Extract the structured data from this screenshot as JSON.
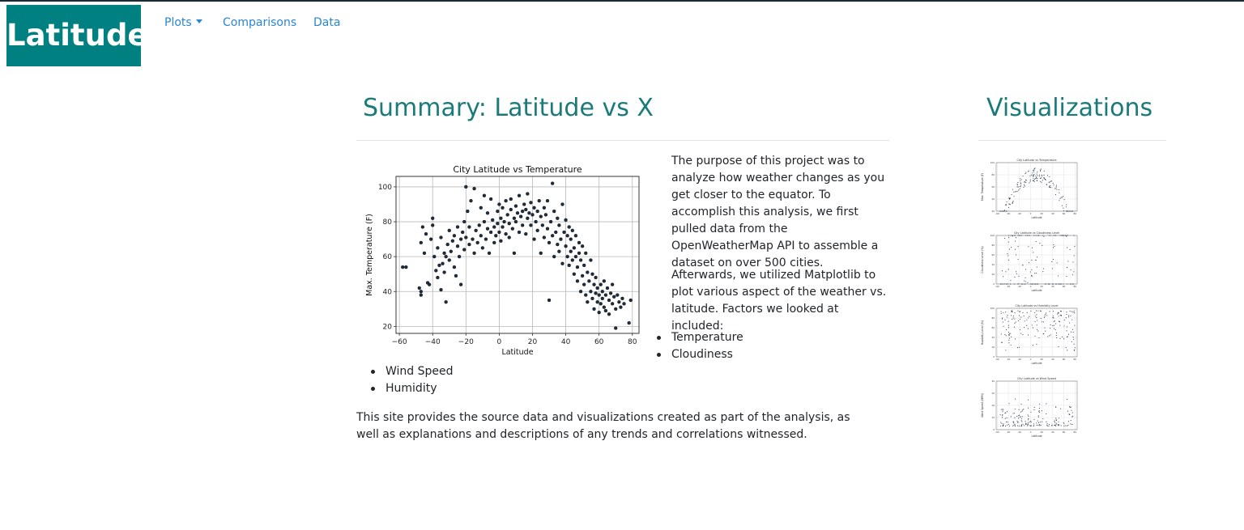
{
  "brand": "Latitude",
  "nav": {
    "plots_label": "Plots",
    "comparisons_label": "Comparisons",
    "data_label": "Data"
  },
  "summary": {
    "title": "Summary: Latitude vs X",
    "paragraph1": "The purpose of this project was to analyze how weather changes as you get closer to the equator. To accomplish this analysis, we first pulled data from the OpenWeatherMap API to assemble a dataset on over 500 cities.",
    "paragraph2": "Afterwards, we utilized Matplotlib to plot various aspect of the weather vs. latitude. Factors we looked at included:",
    "factors_right": [
      "Temperature",
      "Cloudiness"
    ],
    "factors_left": [
      "Wind Speed",
      "Humidity"
    ],
    "paragraph3": "This site provides the source data and visualizations created as part of the analysis, as well as explanations and descriptions of any trends and correlations witnessed."
  },
  "visualizations": {
    "title": "Visualizations",
    "thumbnails": [
      {
        "title": "City Latitude vs Temperature",
        "ylabel": "Max. Temperature (F)",
        "xlabel": "Latitude",
        "yticks": [
          20,
          40,
          60,
          80,
          100
        ]
      },
      {
        "title": "City Latitude vs Cloudiness Level",
        "ylabel": "Cloudiness Level (%)",
        "xlabel": "Latitude",
        "yticks": [
          0,
          20,
          40,
          60,
          80,
          100
        ]
      },
      {
        "title": "City Latitude vs Humidity Level",
        "ylabel": "Humidity Level (%)",
        "xlabel": "Latitude",
        "yticks": [
          0,
          20,
          40,
          60,
          80,
          100
        ]
      },
      {
        "title": "City Latitude vs Wind Speed",
        "ylabel": "Wind Speed (MPH)",
        "xlabel": "Latitude",
        "yticks": [
          0,
          10,
          20,
          30,
          40
        ]
      }
    ]
  },
  "chart_data": {
    "type": "scatter",
    "title": "City Latitude vs Temperature",
    "xlabel": "Latitude",
    "ylabel": "Max. Temperature (F)",
    "xlim": [
      -62,
      84
    ],
    "ylim": [
      16,
      106
    ],
    "xticks": [
      -60,
      -40,
      -20,
      0,
      20,
      40,
      60,
      80
    ],
    "yticks": [
      20,
      40,
      60,
      80,
      100
    ],
    "grid": true,
    "marker_color": "#1f2d3d",
    "points": [
      [
        -58,
        54
      ],
      [
        -56,
        54
      ],
      [
        -48,
        42
      ],
      [
        -47,
        40
      ],
      [
        -47,
        38
      ],
      [
        -47,
        68
      ],
      [
        -46,
        77
      ],
      [
        -45,
        62
      ],
      [
        -44,
        73
      ],
      [
        -43,
        45
      ],
      [
        -42,
        44
      ],
      [
        -41,
        70
      ],
      [
        -40,
        78
      ],
      [
        -40,
        82
      ],
      [
        -39,
        60
      ],
      [
        -38,
        52
      ],
      [
        -37,
        65
      ],
      [
        -37,
        48
      ],
      [
        -36,
        55
      ],
      [
        -35,
        41
      ],
      [
        -35,
        71
      ],
      [
        -34,
        56
      ],
      [
        -33,
        62
      ],
      [
        -33,
        51
      ],
      [
        -32,
        34
      ],
      [
        -32,
        60
      ],
      [
        -31,
        67
      ],
      [
        -30,
        58
      ],
      [
        -30,
        75
      ],
      [
        -29,
        63
      ],
      [
        -28,
        69
      ],
      [
        -27,
        54
      ],
      [
        -27,
        72
      ],
      [
        -26,
        49
      ],
      [
        -25,
        66
      ],
      [
        -25,
        77
      ],
      [
        -24,
        60
      ],
      [
        -23,
        44
      ],
      [
        -23,
        70
      ],
      [
        -22,
        74
      ],
      [
        -21,
        80
      ],
      [
        -21,
        64
      ],
      [
        -20,
        71
      ],
      [
        -20,
        100
      ],
      [
        -19,
        86
      ],
      [
        -18,
        67
      ],
      [
        -18,
        77
      ],
      [
        -17,
        92
      ],
      [
        -16,
        70
      ],
      [
        -15,
        62
      ],
      [
        -15,
        99
      ],
      [
        -14,
        75
      ],
      [
        -13,
        68
      ],
      [
        -12,
        78
      ],
      [
        -11,
        88
      ],
      [
        -11,
        72
      ],
      [
        -10,
        65
      ],
      [
        -9,
        80
      ],
      [
        -9,
        95
      ],
      [
        -8,
        70
      ],
      [
        -7,
        76
      ],
      [
        -7,
        85
      ],
      [
        -6,
        62
      ],
      [
        -5,
        74
      ],
      [
        -5,
        93
      ],
      [
        -4,
        81
      ],
      [
        -3,
        68
      ],
      [
        -3,
        77
      ],
      [
        -2,
        72
      ],
      [
        -1,
        86
      ],
      [
        -1,
        79
      ],
      [
        0,
        74
      ],
      [
        0,
        90
      ],
      [
        1,
        82
      ],
      [
        1,
        69
      ],
      [
        2,
        77
      ],
      [
        2,
        88
      ],
      [
        3,
        80
      ],
      [
        4,
        73
      ],
      [
        4,
        92
      ],
      [
        5,
        84
      ],
      [
        6,
        71
      ],
      [
        6,
        79
      ],
      [
        7,
        87
      ],
      [
        7,
        93
      ],
      [
        8,
        76
      ],
      [
        9,
        82
      ],
      [
        9,
        62
      ],
      [
        10,
        89
      ],
      [
        10,
        80
      ],
      [
        11,
        85
      ],
      [
        12,
        74
      ],
      [
        12,
        95
      ],
      [
        13,
        83
      ],
      [
        14,
        86
      ],
      [
        14,
        78
      ],
      [
        15,
        90
      ],
      [
        16,
        73
      ],
      [
        16,
        87
      ],
      [
        17,
        82
      ],
      [
        17,
        96
      ],
      [
        18,
        85
      ],
      [
        19,
        78
      ],
      [
        19,
        91
      ],
      [
        20,
        84
      ],
      [
        21,
        88
      ],
      [
        21,
        70
      ],
      [
        22,
        80
      ],
      [
        23,
        86
      ],
      [
        23,
        75
      ],
      [
        24,
        92
      ],
      [
        25,
        83
      ],
      [
        25,
        62
      ],
      [
        26,
        78
      ],
      [
        27,
        88
      ],
      [
        27,
        71
      ],
      [
        28,
        84
      ],
      [
        29,
        76
      ],
      [
        29,
        92
      ],
      [
        30,
        35
      ],
      [
        30,
        68
      ],
      [
        31,
        80
      ],
      [
        32,
        102
      ],
      [
        32,
        72
      ],
      [
        33,
        60
      ],
      [
        33,
        86
      ],
      [
        34,
        74
      ],
      [
        35,
        67
      ],
      [
        35,
        82
      ],
      [
        36,
        78
      ],
      [
        36,
        63
      ],
      [
        37,
        70
      ],
      [
        38,
        56
      ],
      [
        38,
        90
      ],
      [
        39,
        74
      ],
      [
        40,
        66
      ],
      [
        40,
        81
      ],
      [
        41,
        60
      ],
      [
        41,
        72
      ],
      [
        42,
        77
      ],
      [
        42,
        55
      ],
      [
        43,
        63
      ],
      [
        43,
        70
      ],
      [
        44,
        58
      ],
      [
        44,
        75
      ],
      [
        45,
        50
      ],
      [
        45,
        65
      ],
      [
        46,
        72
      ],
      [
        46,
        60
      ],
      [
        47,
        54
      ],
      [
        47,
        46
      ],
      [
        48,
        68
      ],
      [
        48,
        62
      ],
      [
        49,
        58
      ],
      [
        49,
        40
      ],
      [
        50,
        66
      ],
      [
        50,
        49
      ],
      [
        51,
        55
      ],
      [
        51,
        44
      ],
      [
        52,
        62
      ],
      [
        52,
        38
      ],
      [
        53,
        51
      ],
      [
        53,
        34
      ],
      [
        54,
        46
      ],
      [
        55,
        58
      ],
      [
        55,
        40
      ],
      [
        56,
        36
      ],
      [
        56,
        50
      ],
      [
        57,
        44
      ],
      [
        57,
        30
      ],
      [
        58,
        39
      ],
      [
        58,
        48
      ],
      [
        59,
        34
      ],
      [
        59,
        42
      ],
      [
        60,
        38
      ],
      [
        60,
        28
      ],
      [
        61,
        44
      ],
      [
        61,
        33
      ],
      [
        62,
        40
      ],
      [
        62,
        36
      ],
      [
        63,
        31
      ],
      [
        63,
        46
      ],
      [
        64,
        38
      ],
      [
        64,
        29
      ],
      [
        65,
        42
      ],
      [
        66,
        35
      ],
      [
        66,
        27
      ],
      [
        67,
        39
      ],
      [
        68,
        33
      ],
      [
        68,
        44
      ],
      [
        69,
        37
      ],
      [
        70,
        30
      ],
      [
        70,
        19
      ],
      [
        71,
        38
      ],
      [
        72,
        34
      ],
      [
        73,
        31
      ],
      [
        74,
        36
      ],
      [
        75,
        33
      ],
      [
        78,
        22
      ],
      [
        79,
        35
      ]
    ]
  }
}
